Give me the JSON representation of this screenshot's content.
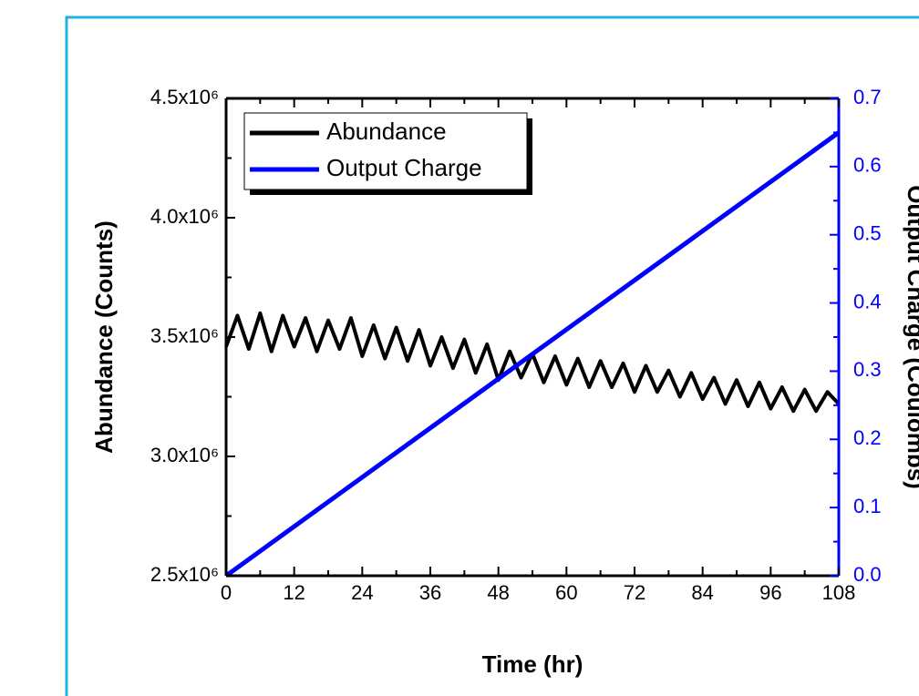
{
  "chart_data": {
    "type": "line",
    "x_label": "Time (hr)",
    "y_label": "Abundance (Counts)",
    "y2_label": "Output Charge (Coulombs)",
    "xlim": [
      0,
      108
    ],
    "xticks": [
      0,
      12,
      24,
      36,
      48,
      60,
      72,
      84,
      96,
      108
    ],
    "ylim": [
      2500000,
      4500000
    ],
    "yticks": [
      {
        "value": 2500000,
        "label": "2.5x10⁶"
      },
      {
        "value": 3000000,
        "label": "3.0x10⁶"
      },
      {
        "value": 3500000,
        "label": "3.5x10⁶"
      },
      {
        "value": 4000000,
        "label": "4.0x10⁶"
      },
      {
        "value": 4500000,
        "label": "4.5x10⁶"
      }
    ],
    "y2lim": [
      0,
      0.7
    ],
    "y2ticks": [
      {
        "value": 0,
        "label": "0.0"
      },
      0.1,
      0.2,
      0.3,
      0.4,
      0.5,
      0.6,
      0.7
    ],
    "y2color": "#0000ff",
    "legend": "upper left",
    "series": [
      {
        "name": "Abundance",
        "color": "#000000",
        "x": [
          0,
          2,
          4,
          6,
          8,
          10,
          12,
          14,
          16,
          18,
          20,
          22,
          24,
          26,
          28,
          30,
          32,
          34,
          36,
          38,
          40,
          42,
          44,
          46,
          48,
          50,
          52,
          54,
          56,
          58,
          60,
          62,
          64,
          66,
          68,
          70,
          72,
          74,
          76,
          78,
          80,
          82,
          84,
          86,
          88,
          90,
          92,
          94,
          96,
          98,
          100,
          102,
          104,
          106,
          108
        ],
        "values": [
          3460000,
          3590000,
          3450000,
          3600000,
          3440000,
          3590000,
          3460000,
          3580000,
          3440000,
          3570000,
          3450000,
          3580000,
          3420000,
          3550000,
          3410000,
          3540000,
          3400000,
          3530000,
          3380000,
          3500000,
          3370000,
          3490000,
          3350000,
          3470000,
          3320000,
          3440000,
          3330000,
          3430000,
          3310000,
          3420000,
          3300000,
          3410000,
          3290000,
          3400000,
          3290000,
          3390000,
          3270000,
          3380000,
          3270000,
          3360000,
          3250000,
          3350000,
          3240000,
          3330000,
          3220000,
          3320000,
          3210000,
          3310000,
          3200000,
          3290000,
          3190000,
          3280000,
          3190000,
          3270000,
          3220000
        ]
      },
      {
        "name": "Output Charge",
        "color": "#0000ff",
        "axis": "y2",
        "x": [
          0,
          108
        ],
        "values": [
          0,
          0.65
        ]
      }
    ]
  }
}
